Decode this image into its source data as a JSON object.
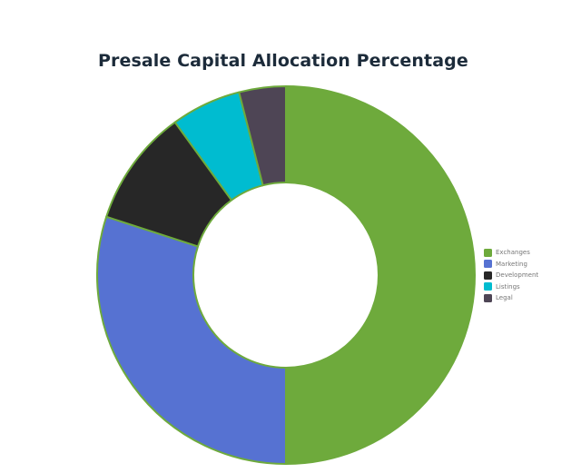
{
  "chart_data": {
    "type": "pie",
    "variant": "donut",
    "title": "Presale Capital Allocation Percentage",
    "labels": [
      "Exchanges",
      "Marketing",
      "Development",
      "Listings",
      "Legal"
    ],
    "values": [
      50,
      30,
      10,
      6,
      4
    ],
    "colors": [
      "#6eaa3c",
      "#5672d2",
      "#272727",
      "#00bcd0",
      "#4e4555"
    ],
    "legend": "right",
    "data_labels": false
  },
  "colors": {
    "slice_border": "#6eaa3c"
  }
}
